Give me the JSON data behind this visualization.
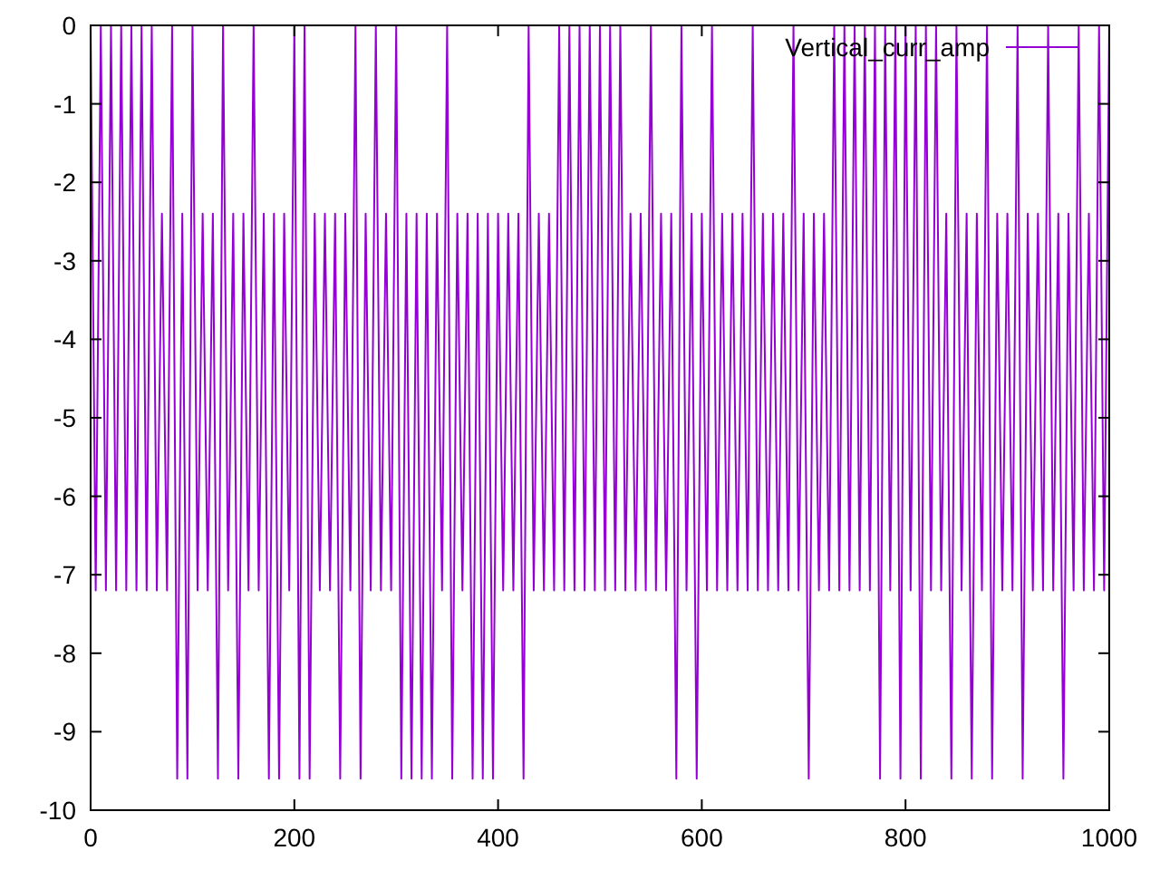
{
  "chart_data": {
    "type": "line",
    "x": [
      0,
      5,
      10,
      15,
      20,
      25,
      30,
      35,
      40,
      45,
      50,
      55,
      60,
      65,
      70,
      75,
      80,
      85,
      90,
      95,
      100,
      105,
      110,
      115,
      120,
      125,
      130,
      135,
      140,
      145,
      150,
      155,
      160,
      165,
      170,
      175,
      180,
      185,
      190,
      195,
      200,
      205,
      210,
      215,
      220,
      225,
      230,
      235,
      240,
      245,
      250,
      255,
      260,
      265,
      270,
      275,
      280,
      285,
      290,
      295,
      300,
      305,
      310,
      315,
      320,
      325,
      330,
      335,
      340,
      345,
      350,
      355,
      360,
      365,
      370,
      375,
      380,
      385,
      390,
      395,
      400,
      405,
      410,
      415,
      420,
      425,
      430,
      435,
      440,
      445,
      450,
      455,
      460,
      465,
      470,
      475,
      480,
      485,
      490,
      495,
      500,
      505,
      510,
      515,
      520,
      525,
      530,
      535,
      540,
      545,
      550,
      555,
      560,
      565,
      570,
      575,
      580,
      585,
      590,
      595,
      600,
      605,
      610,
      615,
      620,
      625,
      630,
      635,
      640,
      645,
      650,
      655,
      660,
      665,
      670,
      675,
      680,
      685,
      690,
      695,
      700,
      705,
      710,
      715,
      720,
      725,
      730,
      735,
      740,
      745,
      750,
      755,
      760,
      765,
      770,
      775,
      780,
      785,
      790,
      795,
      800,
      805,
      810,
      815,
      820,
      825,
      830,
      835,
      840,
      845,
      850,
      855,
      860,
      865,
      870,
      875,
      880,
      885,
      890,
      895,
      900,
      905,
      910,
      915,
      920,
      925,
      930,
      935,
      940,
      945,
      950,
      955,
      960,
      965,
      970,
      975,
      980,
      985,
      990,
      995,
      1000
    ],
    "series": [
      {
        "name": "Vertical_curr_amp",
        "color": "#9400d3",
        "values": [
          0,
          -7.2,
          0,
          -7.2,
          0,
          -7.2,
          0,
          -7.2,
          0,
          -7.2,
          0,
          -7.2,
          0,
          -7.2,
          -2.4,
          -7.2,
          0,
          -9.6,
          -2.4,
          -9.6,
          0,
          -7.2,
          -2.4,
          -7.2,
          -2.4,
          -9.6,
          0,
          -7.2,
          -2.4,
          -9.6,
          -2.4,
          -7.2,
          0,
          -7.2,
          -2.4,
          -9.6,
          -2.4,
          -9.6,
          -2.4,
          -7.2,
          0,
          -9.6,
          0,
          -9.6,
          -2.4,
          -7.2,
          -2.4,
          -7.2,
          -2.4,
          -9.6,
          -2.4,
          -7.2,
          0,
          -9.6,
          -2.4,
          -7.2,
          0,
          -7.2,
          -2.4,
          -7.2,
          0,
          -9.6,
          -2.4,
          -9.6,
          -2.4,
          -9.6,
          -2.4,
          -9.6,
          -2.4,
          -7.2,
          0,
          -9.6,
          -2.4,
          -7.2,
          -2.4,
          -9.6,
          -2.4,
          -9.6,
          -2.4,
          -9.6,
          -2.4,
          -7.2,
          -2.4,
          -7.2,
          -2.4,
          -9.6,
          0,
          -7.2,
          -2.4,
          -7.2,
          -2.4,
          -7.2,
          0,
          -7.2,
          0,
          -7.2,
          0,
          -7.2,
          0,
          -7.2,
          0,
          -7.2,
          0,
          -7.2,
          0,
          -7.2,
          -2.4,
          -7.2,
          -2.4,
          -7.2,
          0,
          -7.2,
          -2.4,
          -7.2,
          -2.4,
          -9.6,
          0,
          -7.2,
          -2.4,
          -9.6,
          -2.4,
          -7.2,
          0,
          -7.2,
          -2.4,
          -7.2,
          -2.4,
          -7.2,
          -2.4,
          -7.2,
          0,
          -7.2,
          -2.4,
          -7.2,
          -2.4,
          -7.2,
          -2.4,
          -7.2,
          0,
          -7.2,
          -2.4,
          -9.6,
          -2.4,
          -7.2,
          -2.4,
          -7.2,
          0,
          -7.2,
          0,
          -7.2,
          0,
          -7.2,
          0,
          -7.2,
          0,
          -9.6,
          0,
          -7.2,
          0,
          -9.6,
          0,
          -7.2,
          0,
          -9.6,
          0,
          -7.2,
          0,
          -7.2,
          -2.4,
          -9.6,
          0,
          -7.2,
          -2.4,
          -9.6,
          -2.4,
          -7.2,
          0,
          -9.6,
          -2.4,
          -7.2,
          -2.4,
          -7.2,
          0,
          -9.6,
          -2.4,
          -7.2,
          -2.4,
          -7.2,
          0,
          -7.2,
          -2.4,
          -9.6,
          -2.4,
          -7.2,
          0,
          -7.2,
          -2.4,
          -7.2,
          0,
          -7.2,
          0
        ]
      }
    ],
    "xlim": [
      0,
      1000
    ],
    "xticks": [
      0,
      200,
      400,
      600,
      800,
      1000
    ],
    "ylim": [
      -10,
      0
    ],
    "yticks": [
      -10,
      -9,
      -8,
      -7,
      -6,
      -5,
      -4,
      -3,
      -2,
      -1,
      0
    ],
    "legend": "top right",
    "grid": false,
    "marker": "none",
    "line_style": "solid"
  }
}
